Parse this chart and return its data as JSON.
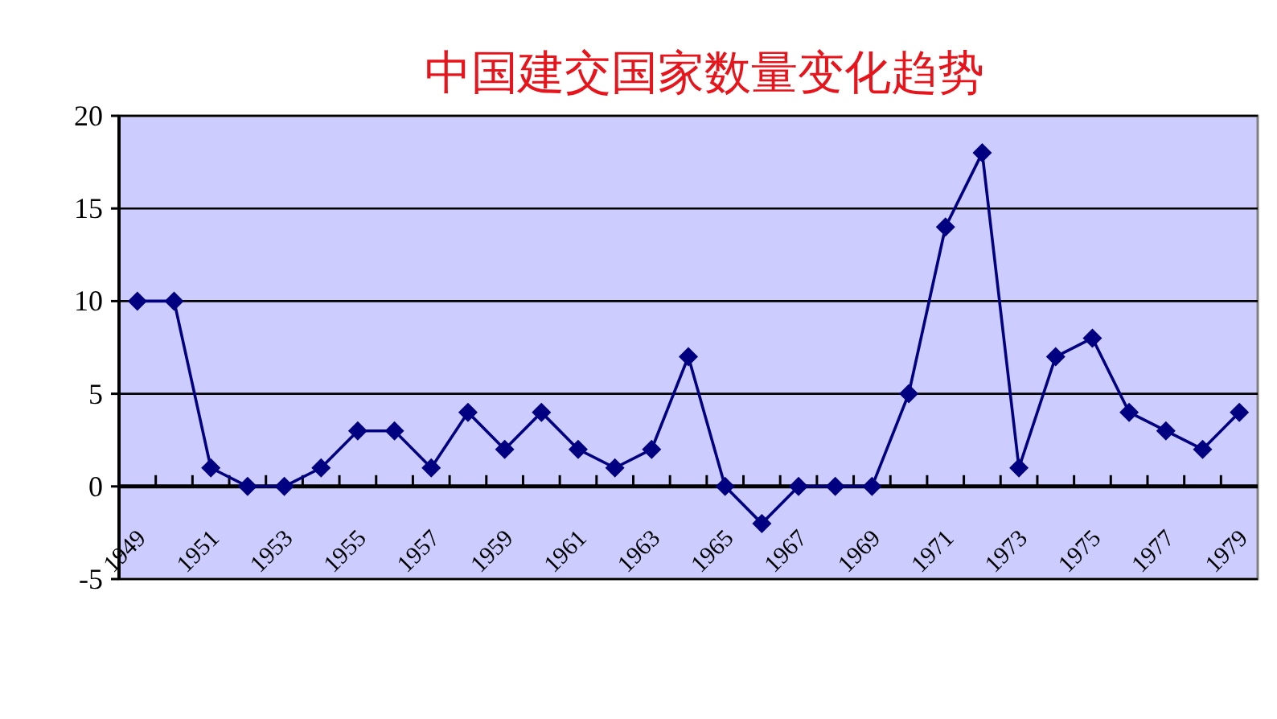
{
  "chart_data": {
    "type": "line",
    "title": "中国建交国家数量变化趋势",
    "categories": [
      "1949",
      null,
      "1951",
      null,
      "1953",
      null,
      "1955",
      null,
      "1957",
      null,
      "1959",
      null,
      "1961",
      null,
      "1963",
      null,
      "1965",
      null,
      "1967",
      null,
      "1969",
      null,
      "1971",
      null,
      "1973",
      null,
      "1975",
      null,
      "1977",
      null,
      "1979"
    ],
    "series": [
      {
        "color": "#000080",
        "values": [
          10,
          10,
          1,
          0,
          0,
          1,
          3,
          3,
          1,
          4,
          2,
          4,
          2,
          1,
          2,
          7,
          0,
          -2,
          0,
          0,
          0,
          5,
          14,
          18,
          1,
          7,
          8,
          4,
          3,
          2,
          4
        ]
      }
    ],
    "ylim": [
      -5,
      20
    ],
    "yticks": [
      -5,
      0,
      5,
      10,
      15,
      20
    ],
    "grid": "y",
    "marker": "diamond",
    "line_style": "solid"
  }
}
